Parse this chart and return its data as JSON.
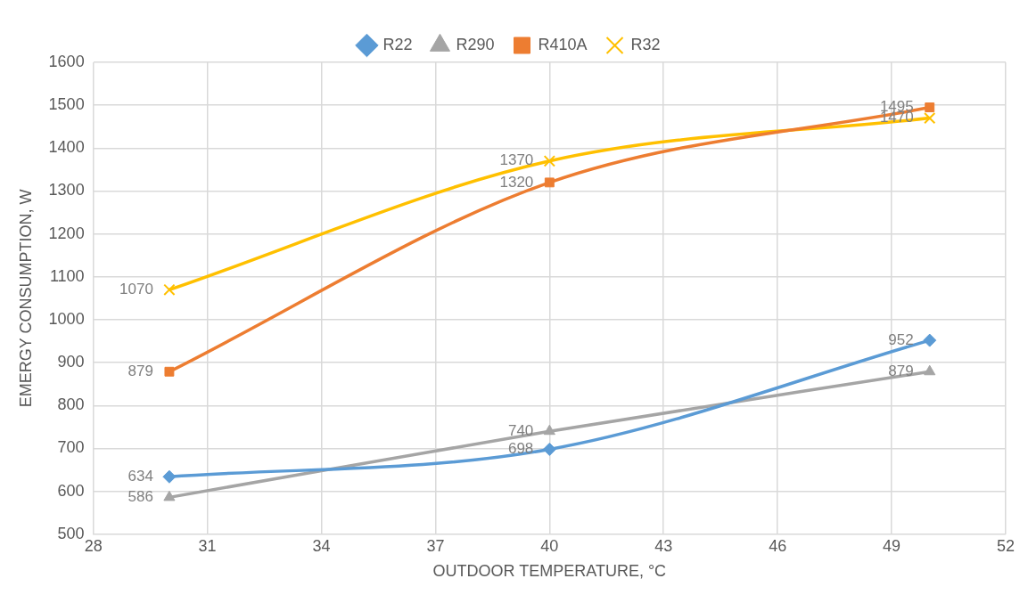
{
  "chart_data": {
    "type": "line",
    "xlabel": "OUTDOOR TEMPERATURE, °C",
    "ylabel": "EMERGY CONSUMPTION, W",
    "x": [
      30,
      40,
      50
    ],
    "series": [
      {
        "name": "R22",
        "color": "#5b9bd5",
        "marker": "diamond",
        "values": [
          634,
          698,
          952
        ]
      },
      {
        "name": "R290",
        "color": "#a5a5a5",
        "marker": "triangle",
        "values": [
          586,
          740,
          879
        ]
      },
      {
        "name": "R410A",
        "color": "#ed7d31",
        "marker": "square",
        "values": [
          879,
          1320,
          1495
        ]
      },
      {
        "name": "R32",
        "color": "#ffc000",
        "marker": "cross",
        "values": [
          1070,
          1370,
          1470
        ]
      }
    ],
    "xlim": [
      28,
      52
    ],
    "xticks": [
      28,
      31,
      34,
      37,
      40,
      43,
      46,
      49,
      52
    ],
    "ylim": [
      500,
      1600
    ],
    "yticks": [
      500,
      600,
      700,
      800,
      900,
      1000,
      1100,
      1200,
      1300,
      1400,
      1500,
      1600
    ],
    "grid": true,
    "legend": "top",
    "data_labels": true
  }
}
